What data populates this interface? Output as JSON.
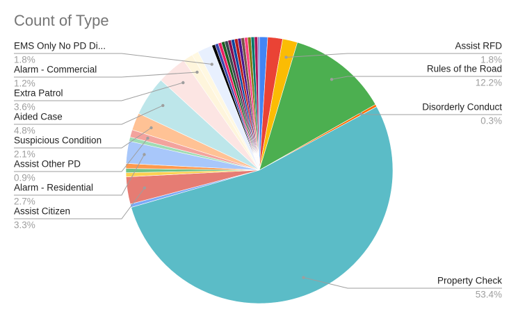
{
  "chart_data": {
    "type": "pie",
    "title": "Count of Type",
    "categories": [
      null,
      null,
      "Assist RFD",
      "Rules of the Road",
      "Disorderly Conduct",
      "Property Check",
      null,
      "Assist Citizen",
      null,
      null,
      null,
      "Alarm - Residential",
      null,
      "Assist Other PD",
      "Suspicious Condition",
      "Aided Case",
      "Extra Patrol",
      "Alarm - Commercial",
      null,
      "EMS Only No PD Di...",
      null,
      null,
      null,
      null,
      null,
      null,
      null,
      null,
      null,
      null,
      null,
      null,
      null,
      null,
      null
    ],
    "values": [
      1.0,
      1.8,
      1.8,
      12.2,
      0.3,
      53.4,
      0.4,
      3.3,
      0.5,
      0.5,
      0.6,
      2.7,
      0.5,
      0.9,
      2.1,
      4.8,
      3.6,
      1.2,
      0.8,
      1.8,
      0.4,
      0.4,
      0.4,
      0.4,
      0.4,
      0.4,
      0.4,
      0.4,
      0.4,
      0.4,
      0.4,
      0.4,
      0.4,
      0.4,
      0.2
    ],
    "value_labels": [
      null,
      null,
      "1.8%",
      "12.2%",
      "0.3%",
      "53.4%",
      null,
      "3.3%",
      null,
      null,
      null,
      "2.7%",
      null,
      "0.9%",
      "2.1%",
      "4.8%",
      "3.6%",
      "1.2%",
      null,
      "1.8%",
      null,
      null,
      null,
      null,
      null,
      null,
      null,
      null,
      null,
      null,
      null,
      null,
      null,
      null,
      null
    ],
    "colors": [
      "#4285f4",
      "#ea4335",
      "#fbbc04",
      "#4caf50",
      "#ff6d01",
      "#5bbcc7",
      "#7baaf7",
      "#e67c73",
      "#fcd04f",
      "#71c287",
      "#ff994d",
      "#a8c7fa",
      "#9fdcb4",
      "#f3a39d",
      "#ffc295",
      "#bde6ea",
      "#fce5e3",
      "#fef5dc",
      "#fff8e1",
      "#e8f0fe",
      "#000000",
      "#3949ab",
      "#e91e63",
      "#1b5e20",
      "#37474f",
      "#880e4f",
      "#0d47a1",
      "#b71c1c",
      "#4a148c",
      "#795548",
      "#ff4081",
      "#827717",
      "#00796b",
      "#ad1457",
      "#7986cb"
    ]
  }
}
